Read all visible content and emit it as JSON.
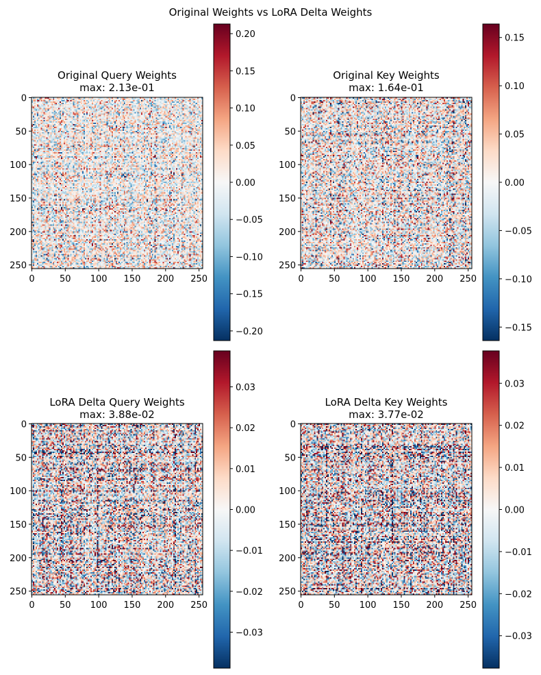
{
  "figure": {
    "suptitle": "Original Weights vs LoRA Delta Weights"
  },
  "colormap": {
    "name": "RdBu_r",
    "stops": [
      "#053061",
      "#2166ac",
      "#4393c3",
      "#92c5de",
      "#d1e5f0",
      "#f7f7f7",
      "#fddbc7",
      "#f4a582",
      "#d6604d",
      "#b2182b",
      "#67001f"
    ]
  },
  "chart_data": [
    {
      "type": "heatmap",
      "title": "Original Query Weights",
      "subtitle": "max: 2.13e-01",
      "matrix_shape": [
        256,
        256
      ],
      "xlim": [
        0,
        255
      ],
      "ylim": [
        255,
        0
      ],
      "xticks": [
        0,
        50,
        100,
        150,
        200,
        250
      ],
      "yticks": [
        0,
        50,
        100,
        150,
        200,
        250
      ],
      "vmin": -0.213,
      "vmax": 0.213,
      "colorbar_ticks": [
        -0.2,
        -0.15,
        -0.1,
        -0.05,
        0.0,
        0.05,
        0.1,
        0.15,
        0.2
      ],
      "colorbar_labels": [
        "−0.20",
        "−0.15",
        "−0.10",
        "−0.05",
        "0.00",
        "0.05",
        "0.10",
        "0.15",
        "0.20"
      ]
    },
    {
      "type": "heatmap",
      "title": "Original Key Weights",
      "subtitle": "max: 1.64e-01",
      "matrix_shape": [
        256,
        256
      ],
      "xlim": [
        0,
        255
      ],
      "ylim": [
        255,
        0
      ],
      "xticks": [
        0,
        50,
        100,
        150,
        200,
        250
      ],
      "yticks": [
        0,
        50,
        100,
        150,
        200,
        250
      ],
      "vmin": -0.164,
      "vmax": 0.164,
      "colorbar_ticks": [
        -0.15,
        -0.1,
        -0.05,
        0.0,
        0.05,
        0.1,
        0.15
      ],
      "colorbar_labels": [
        "−0.15",
        "−0.10",
        "−0.05",
        "0.00",
        "0.05",
        "0.10",
        "0.15"
      ]
    },
    {
      "type": "heatmap",
      "title": "LoRA Delta Query Weights",
      "subtitle": "max: 3.88e-02",
      "matrix_shape": [
        256,
        256
      ],
      "xlim": [
        0,
        255
      ],
      "ylim": [
        255,
        0
      ],
      "xticks": [
        0,
        50,
        100,
        150,
        200,
        250
      ],
      "yticks": [
        0,
        50,
        100,
        150,
        200,
        250
      ],
      "vmin": -0.0388,
      "vmax": 0.0388,
      "colorbar_ticks": [
        -0.03,
        -0.02,
        -0.01,
        0.0,
        0.01,
        0.02,
        0.03
      ],
      "colorbar_labels": [
        "−0.03",
        "−0.02",
        "−0.01",
        "0.00",
        "0.01",
        "0.02",
        "0.03"
      ]
    },
    {
      "type": "heatmap",
      "title": "LoRA Delta Key Weights",
      "subtitle": "max: 3.77e-02",
      "matrix_shape": [
        256,
        256
      ],
      "xlim": [
        0,
        255
      ],
      "ylim": [
        255,
        0
      ],
      "xticks": [
        0,
        50,
        100,
        150,
        200,
        250
      ],
      "yticks": [
        0,
        50,
        100,
        150,
        200,
        250
      ],
      "vmin": -0.0377,
      "vmax": 0.0377,
      "colorbar_ticks": [
        -0.03,
        -0.02,
        -0.01,
        0.0,
        0.01,
        0.02,
        0.03
      ],
      "colorbar_labels": [
        "−0.03",
        "−0.02",
        "−0.01",
        "0.00",
        "0.01",
        "0.02",
        "0.03"
      ]
    }
  ]
}
